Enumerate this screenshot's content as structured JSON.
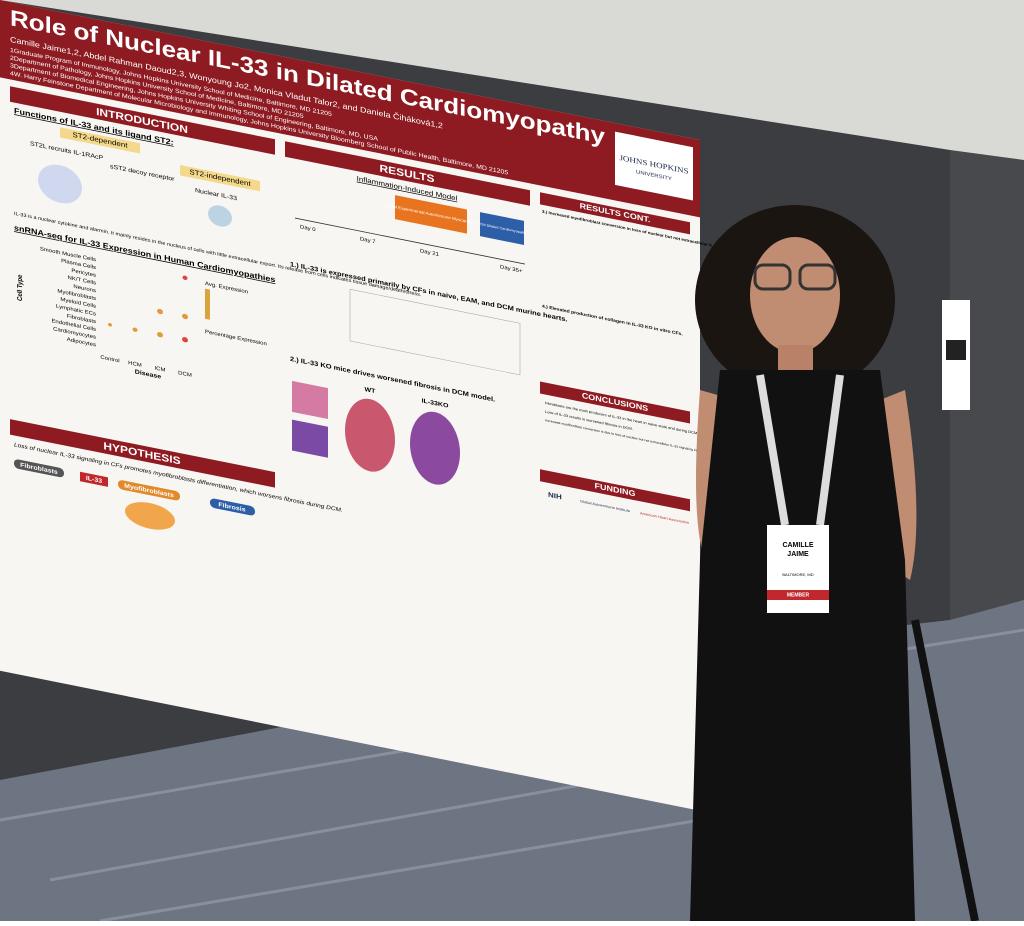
{
  "poster": {
    "title": "Role of Nuclear IL-33 in Dilated Cardiomyopathy",
    "authors": "Camille Jaime1,2, Abdel Rahman Daoud2,3, Wonyoung Jo2, Monica Vladut Talor2, and Daniela Čiháková1,2",
    "affiliations": [
      "1Graduate Program of Immunology, Johns Hopkins University School of Medicine, Baltimore, MD 21205",
      "2Department of Pathology, Johns Hopkins University School of Medicine, Baltimore, MD 21205",
      "3Department of Biomedical Engineering, Johns Hopkins University Whiting School of Engineering, Baltimore, MD, USA",
      "4W. Harry Feinstone Department of Molecular Microbiology and Immunology, Johns Hopkins University Bloomberg School of Public Health, Baltimore, MD 21205"
    ],
    "logo": [
      "JOHNS HOPKINS",
      "UNIVERSITY"
    ],
    "introduction": {
      "heading": "INTRODUCTION",
      "subheading": "Functions of IL-33 and its ligand ST2:",
      "tags": [
        "ST2-dependent",
        "ST2-independent"
      ],
      "items": [
        "ST2L recruits IL-1RAcP",
        "sST2 decoy receptor",
        "Nuclear IL-33"
      ],
      "text": "IL-33 is a nuclear cytokine and alarmin. It mainly resides in the nucleus of cells with little extracellular export. Its release from cells indicates tissue damage/death/stress.",
      "snrna_heading": "snRNA-seq for IL-33 Expression in Human Cardiomyopathies",
      "cell_types": [
        "Smooth Muscle Cells",
        "Plasma Cells",
        "Pericytes",
        "NK/T Cells",
        "Neurons",
        "Myofibroblasts",
        "Myeloid Cells",
        "Lymphatic ECs",
        "Fibroblasts",
        "Endothelial Cells",
        "Cardiomyocytes",
        "Adipocytes"
      ],
      "diseases": [
        "Control",
        "HCM",
        "ICM",
        "DCM"
      ],
      "axis_y": "Cell Type",
      "axis_x": "Disease",
      "legend": [
        "Avg. Expression",
        "Percentage Expression"
      ]
    },
    "hypothesis": {
      "heading": "HYPOTHESIS",
      "text": "Loss of nuclear IL-33 signaling in CFs promotes myofibroblasts differentiation, which worsens fibrosis during DCM.",
      "labels": [
        "Fibroblasts",
        "IL-33",
        "Myofibroblasts",
        "Fibrosis"
      ]
    },
    "results": {
      "heading": "RESULTS",
      "model": "Inflammation-Induced Model",
      "stages": [
        "EAM Experimental Autoimmune Myocarditis",
        "DCM Dilated Cardiomyopathy"
      ],
      "days": [
        "Day 0",
        "Day 7",
        "Day 21",
        "Day 35+"
      ],
      "finding1": "1.) IL-33 is expressed primarily by CFs in naive, EAM, and DCM murine hearts.",
      "finding2": "2.) IL-33 KO mice drives worsened fibrosis in DCM model.",
      "groups": [
        "WT",
        "IL-33KO"
      ]
    },
    "results_cont": {
      "heading": "RESULTS CONT.",
      "finding3": "3.) Increased myofibroblast conversion in loss of nuclear but not extracellular IL-33 within naive hearts.",
      "finding4": "4.) Elevated production of collagen in IL-33 KO in vitro CFs.",
      "conclusions_heading": "CONCLUSIONS",
      "conclusions": [
        "Fibroblasts are the main producers of IL-33 in the heart in naive state and during DCM.",
        "Loss of IL-33 results in worsened fibrosis in DCM.",
        "Increased myofibroblast conversion is due to loss of nuclear but not extracellular IL-33 signaling in CFs."
      ],
      "funding_heading": "FUNDING",
      "funders": [
        "NIH",
        "Global Autoimmune Institute",
        "American Heart Association"
      ]
    }
  },
  "badge": {
    "first": "CAMILLE",
    "last": "JAIME",
    "city": "BALTIMORE, MD",
    "role": "MEMBER"
  }
}
